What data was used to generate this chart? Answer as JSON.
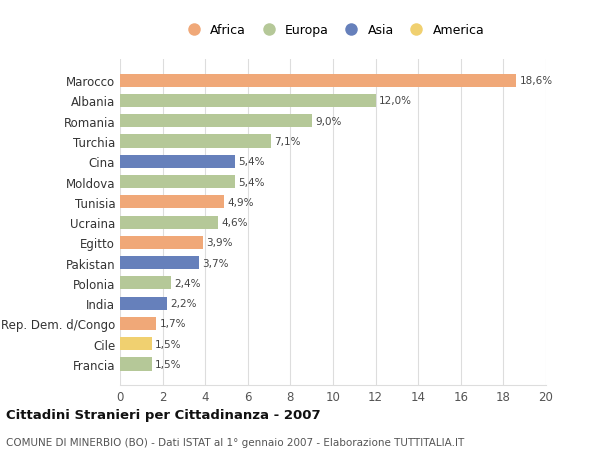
{
  "countries": [
    "Francia",
    "Cile",
    "Rep. Dem. d/Congo",
    "India",
    "Polonia",
    "Pakistan",
    "Egitto",
    "Ucraina",
    "Tunisia",
    "Moldova",
    "Cina",
    "Turchia",
    "Romania",
    "Albania",
    "Marocco"
  ],
  "values": [
    1.5,
    1.5,
    1.7,
    2.2,
    2.4,
    3.7,
    3.9,
    4.6,
    4.9,
    5.4,
    5.4,
    7.1,
    9.0,
    12.0,
    18.6
  ],
  "continents": [
    "Europa",
    "America",
    "Africa",
    "Asia",
    "Europa",
    "Asia",
    "Africa",
    "Europa",
    "Africa",
    "Europa",
    "Asia",
    "Europa",
    "Europa",
    "Europa",
    "Africa"
  ],
  "labels": [
    "1,5%",
    "1,5%",
    "1,7%",
    "2,2%",
    "2,4%",
    "3,7%",
    "3,9%",
    "4,6%",
    "4,9%",
    "5,4%",
    "5,4%",
    "7,1%",
    "9,0%",
    "12,0%",
    "18,6%"
  ],
  "continent_colors": {
    "Africa": "#F0A878",
    "Europa": "#B5C898",
    "Asia": "#6680BB",
    "America": "#F0D070"
  },
  "legend_order": [
    "Africa",
    "Europa",
    "Asia",
    "America"
  ],
  "legend_colors": [
    "#F0A878",
    "#B5C898",
    "#6680BB",
    "#F0D070"
  ],
  "title": "Cittadini Stranieri per Cittadinanza - 2007",
  "subtitle": "COMUNE DI MINERBIO (BO) - Dati ISTAT al 1° gennaio 2007 - Elaborazione TUTTITALIA.IT",
  "xlim": [
    0,
    20
  ],
  "xticks": [
    0,
    2,
    4,
    6,
    8,
    10,
    12,
    14,
    16,
    18,
    20
  ],
  "background_color": "#ffffff",
  "grid_color": "#dddddd",
  "bar_height": 0.65
}
